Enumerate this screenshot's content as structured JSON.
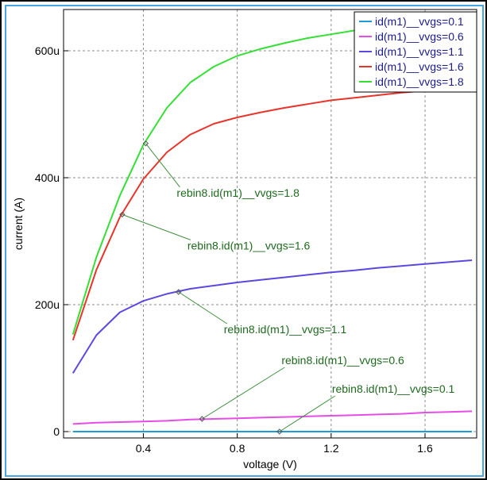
{
  "chart_data": {
    "type": "line",
    "title": "",
    "xlabel": "voltage (V)",
    "ylabel": "current (A)",
    "xlim": [
      0.06,
      1.82
    ],
    "ylim": [
      -10,
      665
    ],
    "grid": true,
    "legend_position": "top-right",
    "x_ticks": [
      0.4,
      0.8,
      1.2,
      1.6
    ],
    "x_tick_labels": [
      "0.4",
      "0.8",
      "1.2",
      "1.6"
    ],
    "y_ticks": [
      0,
      200,
      400,
      600
    ],
    "y_tick_labels": [
      "0",
      "200u",
      "400u",
      "600u"
    ],
    "series": [
      {
        "name": "id(m1)__vvgs=0.1",
        "color": "#1f9bd8",
        "x": [
          0.1,
          0.2,
          0.4,
          0.6,
          0.8,
          1.0,
          1.2,
          1.4,
          1.6,
          1.8
        ],
        "y": [
          0,
          0,
          0,
          0,
          0,
          0,
          0,
          0,
          0,
          0
        ]
      },
      {
        "name": "id(m1)__vvgs=0.6",
        "color": "#e64ce6",
        "x": [
          0.1,
          0.2,
          0.3,
          0.4,
          0.5,
          0.6,
          0.7,
          0.8,
          0.9,
          1.0,
          1.1,
          1.2,
          1.3,
          1.4,
          1.5,
          1.6,
          1.7,
          1.8
        ],
        "y": [
          12,
          14,
          15,
          16,
          17,
          19,
          20,
          21,
          22,
          23,
          24,
          25,
          26,
          27,
          28,
          30,
          31,
          32
        ]
      },
      {
        "name": "id(m1)__vvgs=1.1",
        "color": "#5b48e0",
        "x": [
          0.1,
          0.2,
          0.3,
          0.4,
          0.5,
          0.6,
          0.7,
          0.8,
          0.9,
          1.0,
          1.1,
          1.2,
          1.3,
          1.4,
          1.5,
          1.6,
          1.7,
          1.8
        ],
        "y": [
          92,
          152,
          188,
          206,
          217,
          225,
          230,
          235,
          239,
          243,
          247,
          251,
          254,
          258,
          261,
          264,
          267,
          270
        ]
      },
      {
        "name": "id(m1)__vvgs=1.6",
        "color": "#e8342a",
        "x": [
          0.1,
          0.2,
          0.3,
          0.4,
          0.5,
          0.6,
          0.7,
          0.8,
          0.9,
          1.0,
          1.1,
          1.2,
          1.3,
          1.4,
          1.5,
          1.6,
          1.7,
          1.8
        ],
        "y": [
          144,
          255,
          338,
          398,
          440,
          468,
          485,
          495,
          503,
          510,
          516,
          522,
          526,
          530,
          534,
          537,
          540,
          543
        ]
      },
      {
        "name": "id(m1)__vvgs=1.8",
        "color": "#33e033",
        "x": [
          0.1,
          0.2,
          0.3,
          0.4,
          0.5,
          0.6,
          0.7,
          0.8,
          0.9,
          1.0,
          1.1,
          1.2,
          1.3,
          1.4,
          1.5,
          1.6,
          1.7,
          1.8
        ],
        "y": [
          153,
          275,
          372,
          452,
          510,
          550,
          575,
          592,
          603,
          612,
          620,
          626,
          632,
          637,
          641,
          645,
          648,
          651
        ]
      }
    ],
    "annotations": [
      {
        "label": "rebin8.id(m1)__vvgs=1.8",
        "series_index": 4,
        "x": 0.41,
        "y": 454
      },
      {
        "label": "rebin8.id(m1)__vvgs=1.6",
        "series_index": 3,
        "x": 0.31,
        "y": 342
      },
      {
        "label": "rebin8.id(m1)__vvgs=1.1",
        "series_index": 2,
        "x": 0.55,
        "y": 220
      },
      {
        "label": "rebin8.id(m1)__vvgs=0.6",
        "series_index": 1,
        "x": 0.65,
        "y": 20
      },
      {
        "label": "rebin8.id(m1)__vvgs=0.1",
        "series_index": 0,
        "x": 0.98,
        "y": 0
      }
    ],
    "colors": {
      "grid": "#8c8c8c",
      "legend_text": "#1c1c8c",
      "annotation_text": "#1e6a1e",
      "annotation_line": "#3f8f3f",
      "frame_accent": "#47a6e6"
    }
  }
}
